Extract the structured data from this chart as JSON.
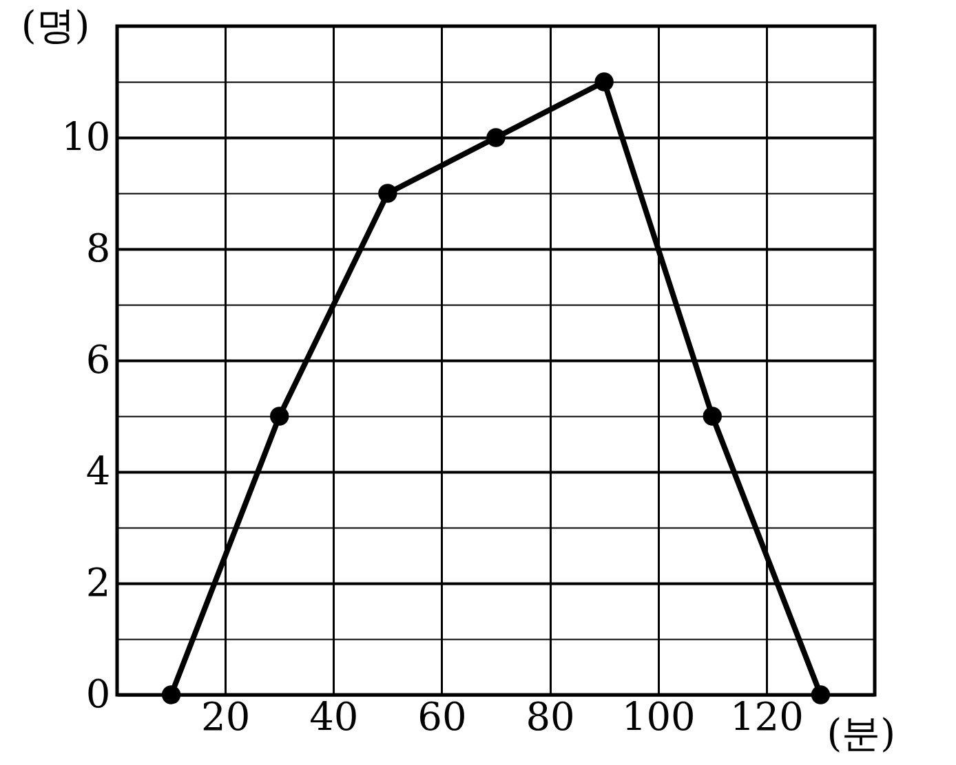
{
  "chart_data": {
    "type": "line",
    "xlabel": "(분)",
    "ylabel": "(명)",
    "x": [
      10,
      30,
      50,
      70,
      90,
      110,
      130
    ],
    "series": [
      {
        "color": "#000000",
        "values": [
          0,
          5,
          9,
          10,
          11,
          5,
          0
        ]
      }
    ],
    "xlim": [
      0,
      140
    ],
    "xticks": [
      {
        "value": 0,
        "label": null
      },
      20,
      40,
      60,
      80,
      100,
      120,
      {
        "value": 140,
        "label": null
      }
    ],
    "ylim": [
      0,
      12
    ],
    "yticks": [
      0,
      {
        "value": 1,
        "label": null
      },
      2,
      {
        "value": 3,
        "label": null
      },
      4,
      {
        "value": 5,
        "label": null
      },
      6,
      {
        "value": 7,
        "label": null
      },
      8,
      {
        "value": 9,
        "label": null
      },
      10,
      {
        "value": 11,
        "label": null
      },
      {
        "value": 12,
        "label": null
      }
    ],
    "grid": true,
    "marker": "circle",
    "line_style": "solid"
  }
}
